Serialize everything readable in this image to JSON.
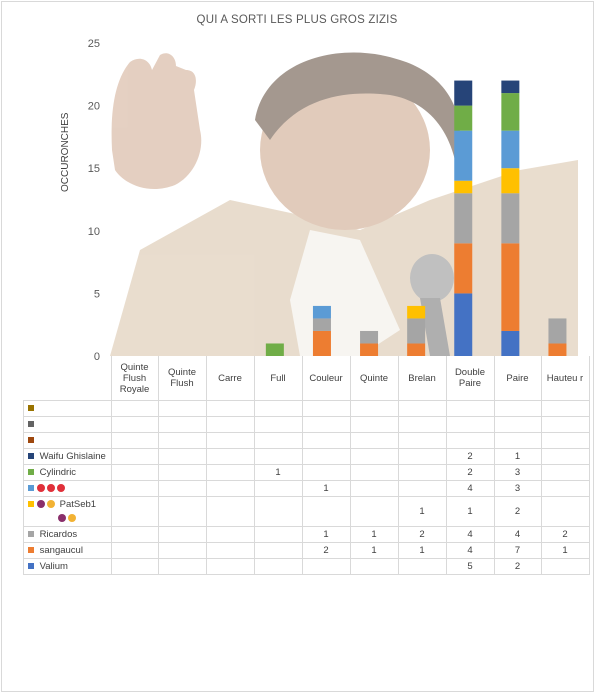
{
  "chart_data": {
    "type": "bar",
    "stacked": true,
    "title": "QUI A SORTI LES PLUS GROS ZIZIS",
    "ylabel": "OCCURONCHES",
    "ylim": [
      0,
      25
    ],
    "yticks": [
      0,
      5,
      10,
      15,
      20,
      25
    ],
    "categories": [
      "Quinte Flush Royale",
      "Quinte Flush",
      "Carre",
      "Full",
      "Couleur",
      "Quinte",
      "Brelan",
      "Double Paire",
      "Paire",
      "Hauteur"
    ],
    "series": [
      {
        "name": "Valium",
        "color": "#4472c4",
        "values": [
          0,
          0,
          0,
          0,
          0,
          0,
          0,
          5,
          2,
          0
        ]
      },
      {
        "name": "sangaucul",
        "color": "#ed7d31",
        "values": [
          0,
          0,
          0,
          0,
          2,
          1,
          1,
          4,
          7,
          1
        ]
      },
      {
        "name": "Ricardos",
        "color": "#a5a5a5",
        "values": [
          0,
          0,
          0,
          0,
          1,
          1,
          2,
          4,
          4,
          2
        ]
      },
      {
        "name": "PatSeb1",
        "color": "#ffc000",
        "values": [
          0,
          0,
          0,
          0,
          0,
          0,
          1,
          1,
          2,
          0
        ]
      },
      {
        "name": "",
        "color": "#5b9bd5",
        "values": [
          0,
          0,
          0,
          0,
          1,
          0,
          0,
          4,
          3,
          0
        ]
      },
      {
        "name": "Cylindric",
        "color": "#70ad47",
        "values": [
          0,
          0,
          0,
          1,
          0,
          0,
          0,
          2,
          3,
          0
        ]
      },
      {
        "name": "Waifu Ghislaine",
        "color": "#264478",
        "values": [
          0,
          0,
          0,
          0,
          0,
          0,
          0,
          2,
          1,
          0
        ]
      },
      {
        "name": "",
        "color": "#9e480e",
        "values": [
          0,
          0,
          0,
          0,
          0,
          0,
          0,
          0,
          0,
          0
        ]
      },
      {
        "name": "",
        "color": "#636363",
        "values": [
          0,
          0,
          0,
          0,
          0,
          0,
          0,
          0,
          0,
          0
        ]
      },
      {
        "name": "",
        "color": "#997300",
        "values": [
          0,
          0,
          0,
          0,
          0,
          0,
          0,
          0,
          0,
          0
        ]
      }
    ],
    "table_rows": [
      {
        "label": "",
        "color": "#997300",
        "cells": [
          "",
          "",
          "",
          "",
          "",
          "",
          "",
          "",
          "",
          ""
        ]
      },
      {
        "label": "",
        "color": "#636363",
        "cells": [
          "",
          "",
          "",
          "",
          "",
          "",
          "",
          "",
          "",
          ""
        ]
      },
      {
        "label": "",
        "color": "#9e480e",
        "cells": [
          "",
          "",
          "",
          "",
          "",
          "",
          "",
          "",
          "",
          ""
        ]
      },
      {
        "label": "Waifu Ghislaine",
        "color": "#264478",
        "cells": [
          "",
          "",
          "",
          "",
          "",
          "",
          "",
          "2",
          "1",
          ""
        ]
      },
      {
        "label": "Cylindric",
        "color": "#70ad47",
        "cells": [
          "",
          "",
          "",
          "1",
          "",
          "",
          "",
          "2",
          "3",
          ""
        ]
      },
      {
        "label": "",
        "color": "#5b9bd5",
        "emoji": [
          "#e0303a",
          "#e0303a",
          "#e0303a"
        ],
        "cells": [
          "",
          "",
          "",
          "",
          "1",
          "",
          "",
          "4",
          "3",
          ""
        ]
      },
      {
        "label": "PatSeb1",
        "color": "#ffc000",
        "emoji": [
          "#8a2f6b",
          "#f2b233"
        ],
        "emoji2": [
          "#8a2f6b",
          "#f2b233"
        ],
        "cells": [
          "",
          "",
          "",
          "",
          "",
          "",
          "1",
          "1",
          "2",
          ""
        ]
      },
      {
        "label": "Ricardos",
        "color": "#a5a5a5",
        "cells": [
          "",
          "",
          "",
          "",
          "1",
          "1",
          "2",
          "4",
          "4",
          "2"
        ]
      },
      {
        "label": "sangaucul",
        "color": "#ed7d31",
        "cells": [
          "",
          "",
          "",
          "",
          "2",
          "1",
          "1",
          "4",
          "7",
          "1"
        ]
      },
      {
        "label": "Valium",
        "color": "#4472c4",
        "cells": [
          "",
          "",
          "",
          "",
          "",
          "",
          "",
          "5",
          "2",
          ""
        ]
      }
    ],
    "header_labels": [
      "Quinte Flush Royale",
      "Quinte Flush",
      "Carre",
      "Full",
      "Couleur",
      "Quinte",
      "Brelan",
      "Double Paire",
      "Paire",
      "Hauteu r"
    ],
    "grid": false,
    "legend": "table"
  }
}
